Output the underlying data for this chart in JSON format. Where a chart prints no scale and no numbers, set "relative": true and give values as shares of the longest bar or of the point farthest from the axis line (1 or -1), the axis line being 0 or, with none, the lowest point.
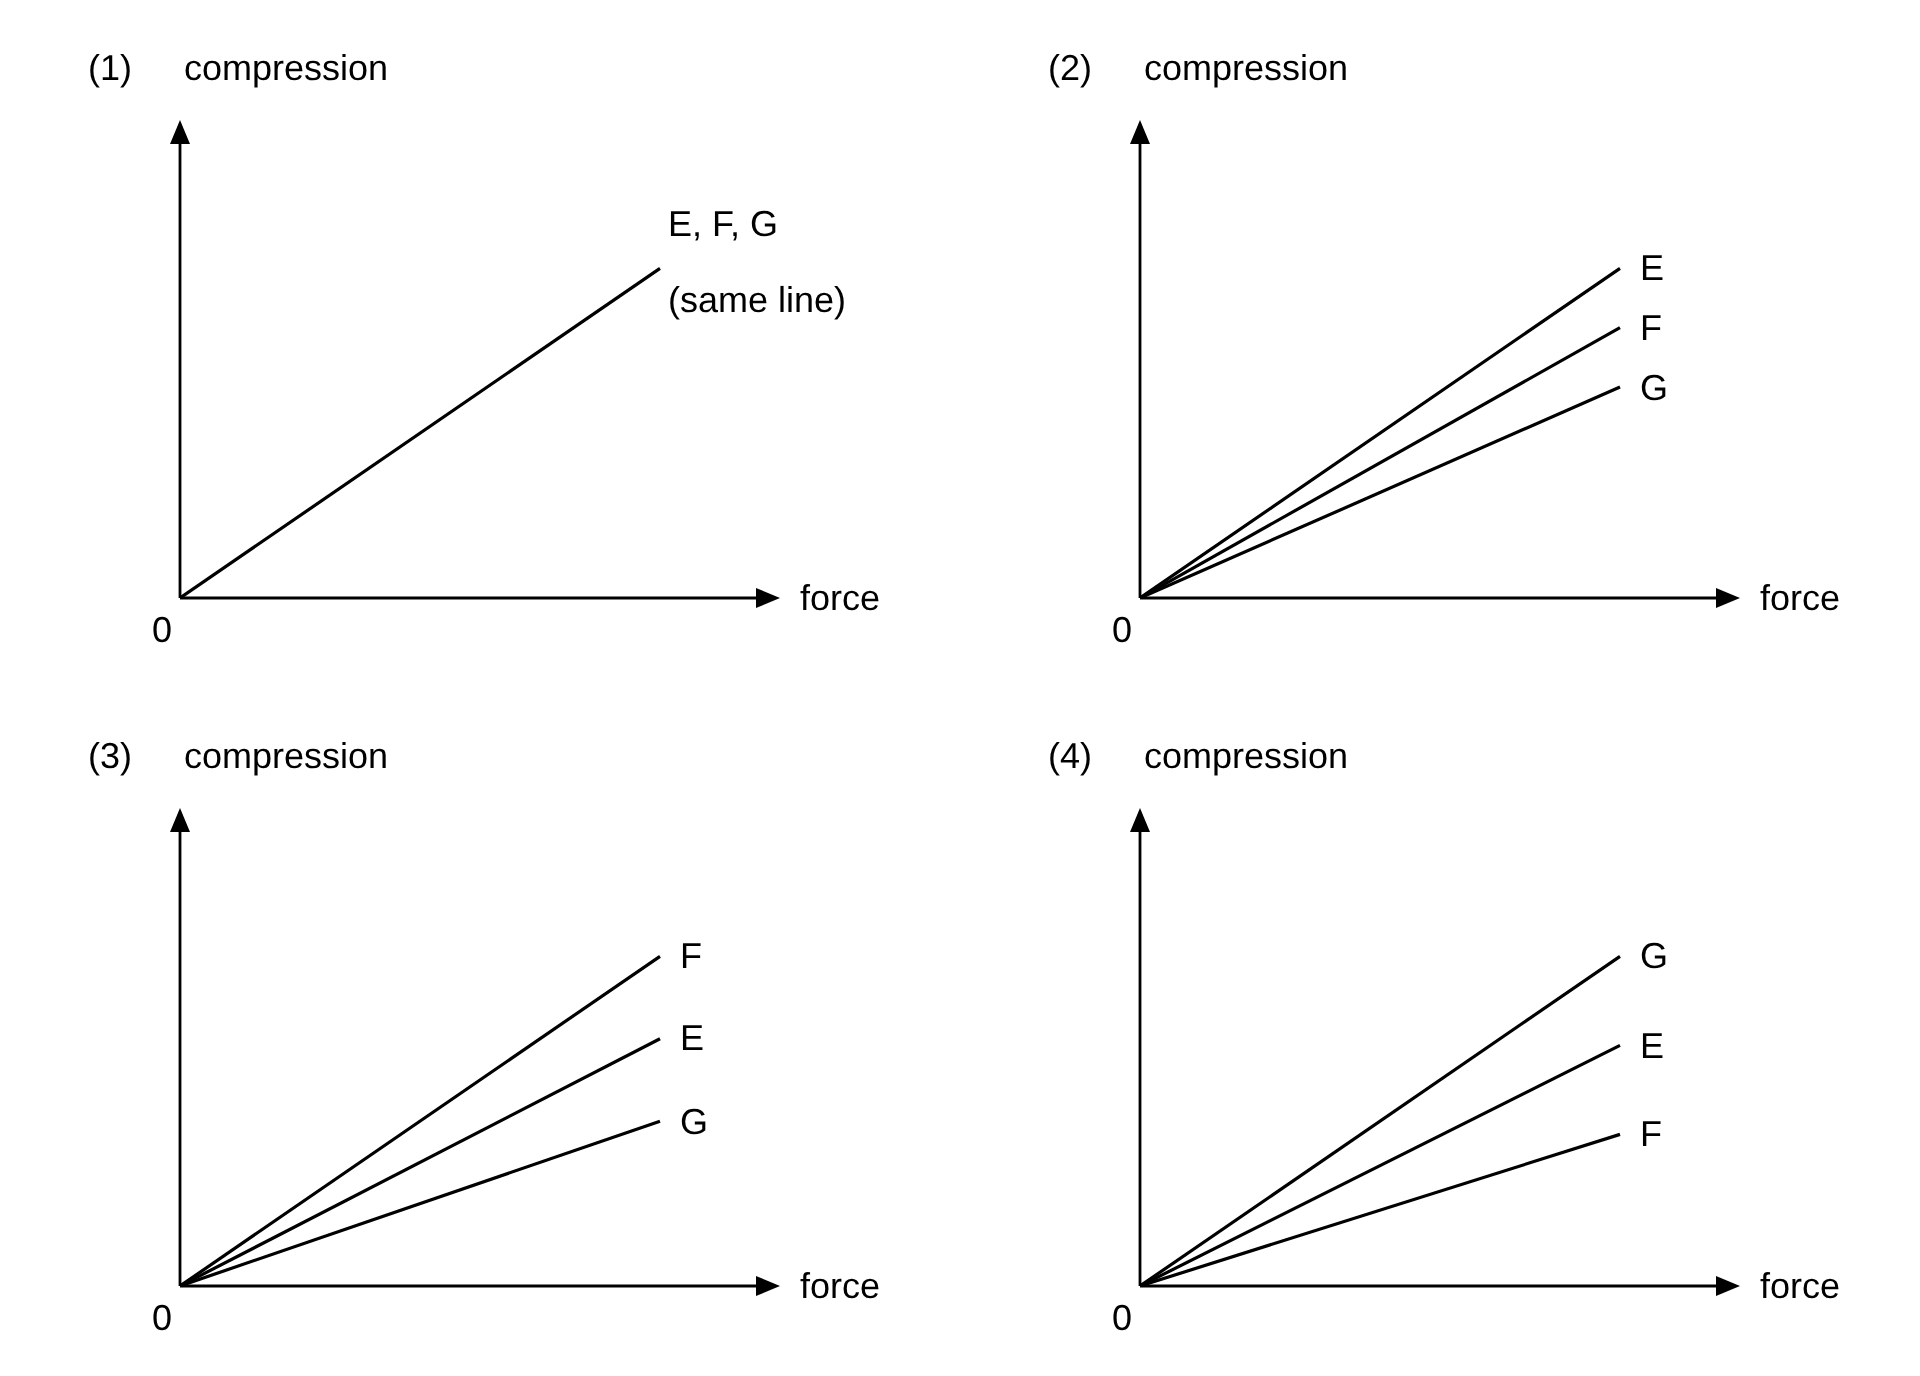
{
  "chart_data": [
    {
      "type": "line",
      "relative": true,
      "title": "(1)",
      "ylabel": "compression",
      "xlabel": "force",
      "categories": [
        null,
        null
      ],
      "legend": false,
      "annotations": [
        "0",
        "(same line)"
      ],
      "series": [
        {
          "name": "E, F, G",
          "color": "#000000",
          "values": [
            0,
            1
          ]
        }
      ]
    },
    {
      "type": "line",
      "relative": true,
      "title": "(2)",
      "ylabel": "compression",
      "xlabel": "force",
      "categories": [
        null,
        null
      ],
      "legend": false,
      "annotations": [
        "0"
      ],
      "series": [
        {
          "name": "E",
          "color": "#000000",
          "values": [
            0,
            1
          ]
        },
        {
          "name": "F",
          "color": "#000000",
          "values": [
            0,
            0.82
          ]
        },
        {
          "name": "G",
          "color": "#000000",
          "values": [
            0,
            0.64
          ]
        }
      ]
    },
    {
      "type": "line",
      "relative": true,
      "title": "(3)",
      "ylabel": "compression",
      "xlabel": "force",
      "categories": [
        null,
        null
      ],
      "legend": false,
      "annotations": [
        "0"
      ],
      "series": [
        {
          "name": "F",
          "color": "#000000",
          "values": [
            0,
            1
          ]
        },
        {
          "name": "E",
          "color": "#000000",
          "values": [
            0,
            0.75
          ]
        },
        {
          "name": "G",
          "color": "#000000",
          "values": [
            0,
            0.5
          ]
        }
      ]
    },
    {
      "type": "line",
      "relative": true,
      "title": "(4)",
      "ylabel": "compression",
      "xlabel": "force",
      "categories": [
        null,
        null
      ],
      "legend": false,
      "annotations": [
        "0"
      ],
      "series": [
        {
          "name": "G",
          "color": "#000000",
          "values": [
            0,
            1
          ]
        },
        {
          "name": "E",
          "color": "#000000",
          "values": [
            0,
            0.73
          ]
        },
        {
          "name": "F",
          "color": "#000000",
          "values": [
            0,
            0.46
          ]
        }
      ]
    }
  ]
}
